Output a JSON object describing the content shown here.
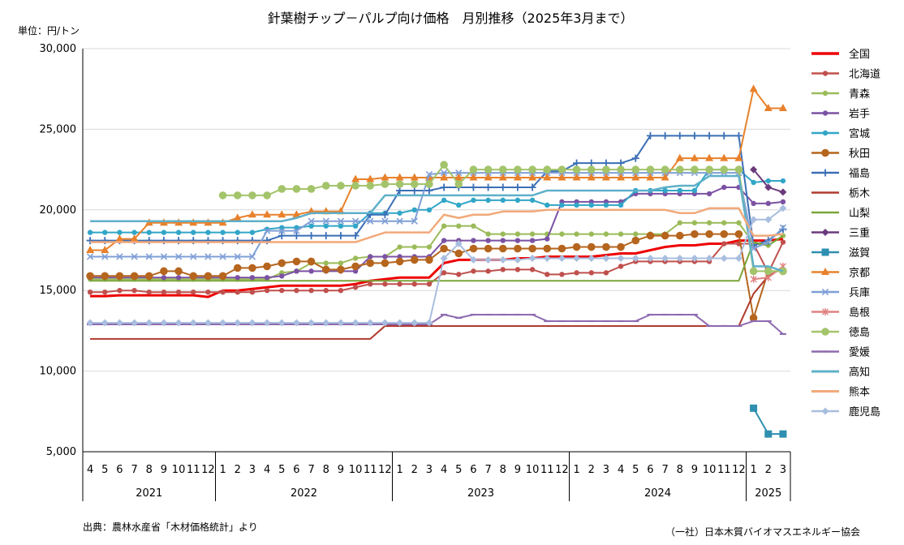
{
  "chart_data": {
    "type": "line",
    "title": "針葉樹チップ－パルプ向け価格　月別推移（2025年3月まで）",
    "unit_label": "単位：円/トン",
    "ylim": [
      5000,
      30000
    ],
    "y_ticks": [
      "5,000",
      "10,000",
      "15,000",
      "20,000",
      "25,000",
      "30,000"
    ],
    "y_tick_values": [
      5000,
      10000,
      15000,
      20000,
      25000,
      30000
    ],
    "grid": true,
    "legend_position": "right",
    "month_labels": [
      "4",
      "5",
      "6",
      "7",
      "8",
      "9",
      "10",
      "11",
      "12",
      "1",
      "2",
      "3",
      "4",
      "5",
      "6",
      "7",
      "8",
      "9",
      "10",
      "11",
      "12",
      "1",
      "2",
      "3",
      "4",
      "5",
      "6",
      "7",
      "8",
      "9",
      "10",
      "11",
      "12",
      "1",
      "2",
      "3",
      "4",
      "5",
      "6",
      "7",
      "8",
      "9",
      "10",
      "11",
      "12",
      "1",
      "2",
      "3"
    ],
    "year_groups": [
      {
        "label": "2021",
        "start": 0,
        "count": 9
      },
      {
        "label": "2022",
        "start": 9,
        "count": 12
      },
      {
        "label": "2023",
        "start": 21,
        "count": 12
      },
      {
        "label": "2024",
        "start": 33,
        "count": 12
      },
      {
        "label": "2025",
        "start": 45,
        "count": 3
      }
    ],
    "series": [
      {
        "name": "全国",
        "color": "#ee0000",
        "marker": "none",
        "width": 3,
        "values": [
          14650,
          14650,
          14700,
          14700,
          14700,
          14700,
          14700,
          14700,
          14600,
          15000,
          15000,
          15100,
          15200,
          15300,
          15300,
          15300,
          15300,
          15300,
          15400,
          15600,
          15700,
          15800,
          15800,
          15800,
          16700,
          16900,
          16900,
          16900,
          16900,
          17000,
          17000,
          17100,
          17100,
          17100,
          17100,
          17200,
          17300,
          17300,
          17500,
          17700,
          17800,
          17800,
          17900,
          17900,
          18100,
          18100,
          18100,
          18200
        ]
      },
      {
        "name": "北海道",
        "color": "#c0504d",
        "marker": "circle",
        "width": 2,
        "values": [
          14900,
          14900,
          15000,
          15000,
          14900,
          14900,
          14900,
          14900,
          14900,
          14900,
          14900,
          14900,
          15000,
          15000,
          15000,
          15000,
          15000,
          15000,
          15200,
          15400,
          15400,
          15400,
          15400,
          15400,
          16100,
          16000,
          16200,
          16200,
          16300,
          16300,
          16300,
          16000,
          16000,
          16100,
          16100,
          16100,
          16500,
          16800,
          16800,
          16800,
          16800,
          16800,
          16800,
          17900,
          17900,
          17900,
          16100,
          18000
        ]
      },
      {
        "name": "青森",
        "color": "#9bbb59",
        "marker": "circle",
        "width": 2,
        "values": [
          15700,
          15700,
          15700,
          15700,
          15700,
          15700,
          15700,
          15700,
          15700,
          15700,
          15700,
          15700,
          15700,
          16100,
          16200,
          16700,
          16700,
          16700,
          17000,
          17100,
          17100,
          17700,
          17700,
          17700,
          19000,
          19000,
          19000,
          18500,
          18500,
          18500,
          18500,
          18500,
          18500,
          18500,
          18500,
          18500,
          18500,
          18500,
          18500,
          18500,
          19200,
          19200,
          19200,
          19200,
          19200,
          17900,
          17800,
          18400
        ]
      },
      {
        "name": "岩手",
        "color": "#7b52a3",
        "marker": "circle",
        "width": 2,
        "values": [
          15800,
          15800,
          15800,
          15800,
          15800,
          15800,
          15800,
          15800,
          15800,
          15800,
          15800,
          15800,
          15800,
          15900,
          16200,
          16200,
          16200,
          16200,
          16200,
          17100,
          17100,
          17100,
          17100,
          17100,
          18100,
          18100,
          18100,
          18100,
          18100,
          18100,
          18100,
          18200,
          20500,
          20500,
          20500,
          20500,
          20500,
          21000,
          21000,
          21000,
          21000,
          21000,
          21000,
          21400,
          21400,
          20400,
          20400,
          20500
        ]
      },
      {
        "name": "宮城",
        "color": "#31a6c7",
        "marker": "circle",
        "width": 2,
        "values": [
          18600,
          18600,
          18600,
          18600,
          18600,
          18600,
          18600,
          18600,
          18600,
          18600,
          18600,
          18600,
          18800,
          18900,
          18900,
          19000,
          19000,
          19000,
          19000,
          19800,
          19800,
          19800,
          20000,
          20000,
          20600,
          20300,
          20600,
          20600,
          20600,
          20600,
          20600,
          20300,
          20300,
          20300,
          20300,
          20300,
          20300,
          21200,
          21200,
          21200,
          21200,
          21200,
          22500,
          22500,
          22500,
          21700,
          21800,
          21800
        ]
      },
      {
        "name": "秋田",
        "color": "#b5651d",
        "marker": "circle-lg",
        "width": 2,
        "values": [
          15900,
          15900,
          15900,
          15900,
          15900,
          16200,
          16200,
          15900,
          15900,
          15900,
          16400,
          16400,
          16500,
          16700,
          16800,
          16800,
          16300,
          16300,
          16500,
          16700,
          16700,
          16800,
          16900,
          16900,
          17600,
          17300,
          17600,
          17600,
          17600,
          17600,
          17600,
          17600,
          17600,
          17700,
          17700,
          17700,
          17700,
          18100,
          18400,
          18400,
          18400,
          18500,
          18500,
          18500,
          18500,
          13300,
          16200,
          16200
        ]
      },
      {
        "name": "福島",
        "color": "#3b6fb6",
        "marker": "plus",
        "width": 2,
        "values": [
          18100,
          18100,
          18100,
          18100,
          18100,
          18100,
          18100,
          18100,
          18100,
          18100,
          18100,
          18100,
          18100,
          18400,
          18400,
          18400,
          18400,
          18400,
          18400,
          19700,
          19700,
          21200,
          21200,
          21200,
          21400,
          21400,
          21400,
          21400,
          21400,
          21400,
          21400,
          22400,
          22400,
          22900,
          22900,
          22900,
          22900,
          23200,
          24600,
          24600,
          24600,
          24600,
          24600,
          24600,
          24600,
          17800,
          18100,
          18800
        ]
      },
      {
        "name": "栃木",
        "color": "#b03a2e",
        "marker": "none",
        "width": 2,
        "values": [
          12000,
          12000,
          12000,
          12000,
          12000,
          12000,
          12000,
          12000,
          12000,
          12000,
          12000,
          12000,
          12000,
          12000,
          12000,
          12000,
          12000,
          12000,
          12000,
          12000,
          12800,
          12800,
          12800,
          12800,
          12800,
          12800,
          12800,
          12800,
          12800,
          12800,
          12800,
          12800,
          12800,
          12800,
          12800,
          12800,
          12800,
          12800,
          12800,
          12800,
          12800,
          12800,
          12800,
          12800,
          12800,
          14800,
          15900,
          16400
        ]
      },
      {
        "name": "山梨",
        "color": "#7aa53a",
        "marker": "none",
        "width": 2,
        "values": [
          15600,
          15600,
          15600,
          15600,
          15600,
          15600,
          15600,
          15600,
          15600,
          15600,
          15600,
          15600,
          15600,
          15600,
          15600,
          15600,
          15600,
          15600,
          15600,
          15600,
          15600,
          15600,
          15600,
          15600,
          15600,
          15600,
          15600,
          15600,
          15600,
          15600,
          15600,
          15600,
          15600,
          15600,
          15600,
          15600,
          15600,
          15600,
          15600,
          15600,
          15600,
          15600,
          15600,
          15600,
          15600,
          18000,
          17800,
          18400
        ]
      },
      {
        "name": "三重",
        "color": "#6b3a7d",
        "marker": "diamond",
        "width": 2,
        "values": [
          null,
          null,
          null,
          null,
          null,
          null,
          null,
          null,
          null,
          null,
          null,
          null,
          null,
          null,
          null,
          null,
          null,
          null,
          null,
          null,
          null,
          null,
          null,
          null,
          null,
          null,
          null,
          null,
          null,
          null,
          null,
          null,
          null,
          null,
          null,
          null,
          null,
          null,
          null,
          null,
          null,
          null,
          null,
          null,
          null,
          22500,
          21400,
          21100
        ]
      },
      {
        "name": "滋賀",
        "color": "#2e8fb0",
        "marker": "square",
        "width": 2,
        "values": [
          null,
          null,
          null,
          null,
          null,
          null,
          null,
          null,
          null,
          null,
          null,
          null,
          null,
          null,
          null,
          null,
          null,
          null,
          null,
          null,
          null,
          null,
          null,
          null,
          null,
          null,
          null,
          null,
          null,
          null,
          null,
          null,
          null,
          null,
          null,
          null,
          null,
          null,
          null,
          null,
          null,
          null,
          null,
          null,
          null,
          7700,
          6100,
          6100
        ]
      },
      {
        "name": "京都",
        "color": "#e8812b",
        "marker": "triangle",
        "width": 2,
        "values": [
          17500,
          17500,
          18200,
          18200,
          19200,
          19200,
          19200,
          19200,
          19200,
          19200,
          19500,
          19700,
          19700,
          19700,
          19700,
          19900,
          19900,
          19900,
          21900,
          21900,
          22000,
          22000,
          22000,
          22000,
          22000,
          22000,
          22000,
          22000,
          22000,
          22000,
          22000,
          22000,
          22000,
          22000,
          22000,
          22000,
          22000,
          22000,
          22000,
          22000,
          23200,
          23200,
          23200,
          23200,
          23200,
          27500,
          26300,
          26300
        ]
      },
      {
        "name": "兵庫",
        "color": "#7f9fd6",
        "marker": "x",
        "width": 2,
        "values": [
          17100,
          17100,
          17100,
          17100,
          17100,
          17100,
          17100,
          17100,
          17100,
          17100,
          17100,
          17100,
          18700,
          18700,
          18700,
          19300,
          19300,
          19300,
          19300,
          19300,
          19300,
          19300,
          19300,
          22200,
          22300,
          22300,
          22300,
          22300,
          22300,
          22300,
          22300,
          22300,
          22300,
          22300,
          22300,
          22300,
          22300,
          22300,
          22300,
          22300,
          22300,
          22300,
          22300,
          22300,
          22300,
          17600,
          18000,
          18900
        ]
      },
      {
        "name": "島根",
        "color": "#e08080",
        "marker": "star",
        "width": 2,
        "values": [
          null,
          null,
          null,
          null,
          null,
          null,
          null,
          null,
          null,
          null,
          null,
          null,
          null,
          null,
          null,
          null,
          null,
          null,
          null,
          null,
          null,
          null,
          null,
          null,
          null,
          null,
          null,
          null,
          null,
          null,
          null,
          null,
          null,
          null,
          null,
          null,
          null,
          null,
          null,
          null,
          null,
          null,
          null,
          null,
          null,
          15700,
          15800,
          16500
        ]
      },
      {
        "name": "徳島",
        "color": "#a3c46a",
        "marker": "circle-lg",
        "width": 2,
        "values": [
          null,
          null,
          null,
          null,
          null,
          null,
          null,
          null,
          null,
          20900,
          20900,
          20900,
          20900,
          21300,
          21300,
          21300,
          21500,
          21500,
          21500,
          21500,
          21600,
          21600,
          21600,
          21600,
          22800,
          21600,
          22500,
          22500,
          22500,
          22500,
          22500,
          22500,
          22500,
          22500,
          22500,
          22500,
          22500,
          22500,
          22500,
          22500,
          22500,
          22500,
          22500,
          22500,
          22500,
          16200,
          16200,
          16200
        ]
      },
      {
        "name": "愛媛",
        "color": "#8e6bb0",
        "marker": "dash",
        "width": 2,
        "values": [
          12900,
          12900,
          12900,
          12900,
          12900,
          12900,
          12900,
          12900,
          12900,
          12900,
          12900,
          12900,
          12900,
          12900,
          12900,
          12900,
          12900,
          12900,
          12900,
          12900,
          12900,
          12900,
          12900,
          12900,
          13500,
          13300,
          13500,
          13500,
          13500,
          13500,
          13500,
          13100,
          13100,
          13100,
          13100,
          13100,
          13100,
          13100,
          13500,
          13500,
          13500,
          13500,
          12800,
          12800,
          12800,
          13100,
          13100,
          12300
        ]
      },
      {
        "name": "高知",
        "color": "#5fb0c9",
        "marker": "none",
        "width": 2.5,
        "values": [
          19300,
          19300,
          19300,
          19300,
          19300,
          19300,
          19300,
          19300,
          19300,
          19300,
          19300,
          19300,
          19300,
          19300,
          19500,
          19800,
          19800,
          19800,
          19800,
          19800,
          20900,
          20900,
          20900,
          20900,
          20900,
          20900,
          20900,
          20900,
          20900,
          20900,
          20900,
          21200,
          21200,
          21200,
          21200,
          21200,
          21200,
          21200,
          21200,
          21400,
          21500,
          21500,
          22100,
          22100,
          22100,
          16500,
          16500,
          16200
        ]
      },
      {
        "name": "熊本",
        "color": "#f2a97a",
        "marker": "none",
        "width": 2.5,
        "values": [
          18000,
          18000,
          18000,
          18000,
          18000,
          18000,
          18000,
          18000,
          18000,
          18000,
          18000,
          18000,
          18000,
          18000,
          18000,
          18000,
          18000,
          18000,
          18000,
          18300,
          18600,
          18600,
          18600,
          18600,
          19700,
          19500,
          19700,
          19700,
          19900,
          19900,
          19900,
          20000,
          20000,
          20000,
          20000,
          20000,
          20000,
          20000,
          20000,
          20000,
          19800,
          19800,
          20100,
          20100,
          20100,
          18400,
          18400,
          18500
        ]
      },
      {
        "name": "鹿児島",
        "color": "#a9bedf",
        "marker": "diamond",
        "width": 2,
        "values": [
          13000,
          13000,
          13000,
          13000,
          13000,
          13000,
          13000,
          13000,
          13000,
          13000,
          13000,
          13000,
          13000,
          13000,
          13000,
          13000,
          13000,
          13000,
          13000,
          13000,
          13000,
          13000,
          13000,
          13000,
          17000,
          17900,
          16900,
          16900,
          16900,
          16900,
          17000,
          17000,
          17000,
          17000,
          17000,
          17000,
          17000,
          17000,
          17000,
          17000,
          17000,
          17000,
          17000,
          17000,
          17000,
          19400,
          19400,
          20100
        ]
      }
    ]
  },
  "footer": {
    "source": "出典：農林水産省「木材価格統計」より",
    "org": "（一社）日本木質バイオマスエネルギー協会"
  }
}
